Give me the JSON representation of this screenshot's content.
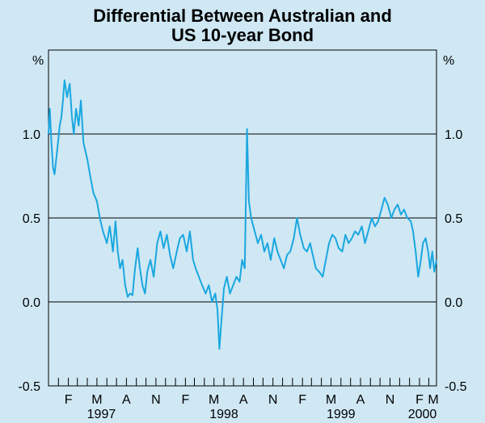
{
  "chart_data": {
    "type": "line",
    "title_lines": [
      "Differential Between Australian and",
      "US 10-year Bond"
    ],
    "y_unit_left": "%",
    "y_unit_right": "%",
    "ylim": [
      -0.5,
      1.5
    ],
    "y_ticks": [
      {
        "value": 1.0,
        "label": "1.0"
      },
      {
        "value": 0.5,
        "label": "0.5"
      },
      {
        "value": 0.0,
        "label": "0.0"
      },
      {
        "value": -0.5,
        "label": "-0.5"
      }
    ],
    "xlim": [
      "1996-12-01",
      "2000-03-25"
    ],
    "x_month_labels": [
      {
        "date": "1997-02-01",
        "label": "F"
      },
      {
        "date": "1997-05-01",
        "label": "M"
      },
      {
        "date": "1997-08-01",
        "label": "A"
      },
      {
        "date": "1997-11-01",
        "label": "N"
      },
      {
        "date": "1998-02-01",
        "label": "F"
      },
      {
        "date": "1998-05-01",
        "label": "M"
      },
      {
        "date": "1998-08-01",
        "label": "A"
      },
      {
        "date": "1998-11-01",
        "label": "N"
      },
      {
        "date": "1999-02-01",
        "label": "F"
      },
      {
        "date": "1999-05-01",
        "label": "M"
      },
      {
        "date": "1999-08-01",
        "label": "A"
      },
      {
        "date": "1999-11-01",
        "label": "N"
      },
      {
        "date": "2000-02-01",
        "label": "F"
      },
      {
        "date": "2000-03-15",
        "label": "M"
      }
    ],
    "x_year_labels": [
      {
        "date": "1997-05-15",
        "label": "1997"
      },
      {
        "date": "1998-06-01",
        "label": "1998"
      },
      {
        "date": "1999-06-01",
        "label": "1999"
      },
      {
        "date": "2000-02-10",
        "label": "2000"
      }
    ],
    "series": [
      {
        "color": "#1aa7e0",
        "points": [
          [
            "1996-12-01",
            1.0
          ],
          [
            "1996-12-05",
            1.15
          ],
          [
            "1996-12-10",
            0.95
          ],
          [
            "1996-12-15",
            0.8
          ],
          [
            "1996-12-20",
            0.76
          ],
          [
            "1996-12-28",
            0.9
          ],
          [
            "1997-01-05",
            1.05
          ],
          [
            "1997-01-10",
            1.1
          ],
          [
            "1997-01-15",
            1.2
          ],
          [
            "1997-01-20",
            1.32
          ],
          [
            "1997-01-28",
            1.22
          ],
          [
            "1997-02-05",
            1.3
          ],
          [
            "1997-02-12",
            1.1
          ],
          [
            "1997-02-18",
            1.0
          ],
          [
            "1997-02-25",
            1.15
          ],
          [
            "1997-03-05",
            1.05
          ],
          [
            "1997-03-12",
            1.2
          ],
          [
            "1997-03-20",
            0.95
          ],
          [
            "1997-04-01",
            0.85
          ],
          [
            "1997-04-10",
            0.75
          ],
          [
            "1997-04-20",
            0.65
          ],
          [
            "1997-05-01",
            0.6
          ],
          [
            "1997-05-10",
            0.5
          ],
          [
            "1997-05-20",
            0.42
          ],
          [
            "1997-06-01",
            0.35
          ],
          [
            "1997-06-10",
            0.45
          ],
          [
            "1997-06-20",
            0.3
          ],
          [
            "1997-06-28",
            0.48
          ],
          [
            "1997-07-05",
            0.3
          ],
          [
            "1997-07-12",
            0.2
          ],
          [
            "1997-07-20",
            0.25
          ],
          [
            "1997-07-28",
            0.1
          ],
          [
            "1997-08-05",
            0.03
          ],
          [
            "1997-08-12",
            0.05
          ],
          [
            "1997-08-20",
            0.04
          ],
          [
            "1997-08-28",
            0.2
          ],
          [
            "1997-09-05",
            0.32
          ],
          [
            "1997-09-12",
            0.2
          ],
          [
            "1997-09-20",
            0.1
          ],
          [
            "1997-09-28",
            0.05
          ],
          [
            "1997-10-05",
            0.18
          ],
          [
            "1997-10-15",
            0.25
          ],
          [
            "1997-10-25",
            0.15
          ],
          [
            "1997-11-05",
            0.35
          ],
          [
            "1997-11-15",
            0.42
          ],
          [
            "1997-11-25",
            0.32
          ],
          [
            "1997-12-05",
            0.4
          ],
          [
            "1997-12-15",
            0.28
          ],
          [
            "1997-12-25",
            0.2
          ],
          [
            "1998-01-05",
            0.3
          ],
          [
            "1998-01-15",
            0.38
          ],
          [
            "1998-01-25",
            0.4
          ],
          [
            "1998-02-05",
            0.3
          ],
          [
            "1998-02-15",
            0.42
          ],
          [
            "1998-02-25",
            0.25
          ],
          [
            "1998-03-05",
            0.2
          ],
          [
            "1998-03-15",
            0.15
          ],
          [
            "1998-03-25",
            0.1
          ],
          [
            "1998-04-05",
            0.05
          ],
          [
            "1998-04-15",
            0.1
          ],
          [
            "1998-04-25",
            0.0
          ],
          [
            "1998-05-05",
            0.05
          ],
          [
            "1998-05-12",
            -0.05
          ],
          [
            "1998-05-18",
            -0.28
          ],
          [
            "1998-05-24",
            -0.12
          ],
          [
            "1998-06-01",
            0.08
          ],
          [
            "1998-06-10",
            0.15
          ],
          [
            "1998-06-20",
            0.05
          ],
          [
            "1998-06-30",
            0.1
          ],
          [
            "1998-07-10",
            0.15
          ],
          [
            "1998-07-20",
            0.12
          ],
          [
            "1998-07-28",
            0.25
          ],
          [
            "1998-08-05",
            0.2
          ],
          [
            "1998-08-12",
            1.03
          ],
          [
            "1998-08-18",
            0.6
          ],
          [
            "1998-08-25",
            0.5
          ],
          [
            "1998-09-05",
            0.42
          ],
          [
            "1998-09-15",
            0.35
          ],
          [
            "1998-09-25",
            0.4
          ],
          [
            "1998-10-05",
            0.3
          ],
          [
            "1998-10-15",
            0.35
          ],
          [
            "1998-10-25",
            0.25
          ],
          [
            "1998-11-05",
            0.38
          ],
          [
            "1998-11-15",
            0.3
          ],
          [
            "1998-11-25",
            0.25
          ],
          [
            "1998-12-05",
            0.2
          ],
          [
            "1998-12-15",
            0.28
          ],
          [
            "1998-12-25",
            0.3
          ],
          [
            "1999-01-05",
            0.38
          ],
          [
            "1999-01-15",
            0.5
          ],
          [
            "1999-01-25",
            0.4
          ],
          [
            "1999-02-05",
            0.32
          ],
          [
            "1999-02-15",
            0.3
          ],
          [
            "1999-02-25",
            0.35
          ],
          [
            "1999-03-05",
            0.28
          ],
          [
            "1999-03-15",
            0.2
          ],
          [
            "1999-03-25",
            0.18
          ],
          [
            "1999-04-05",
            0.15
          ],
          [
            "1999-04-15",
            0.25
          ],
          [
            "1999-04-25",
            0.35
          ],
          [
            "1999-05-05",
            0.4
          ],
          [
            "1999-05-15",
            0.38
          ],
          [
            "1999-05-25",
            0.32
          ],
          [
            "1999-06-05",
            0.3
          ],
          [
            "1999-06-15",
            0.4
          ],
          [
            "1999-06-25",
            0.35
          ],
          [
            "1999-07-05",
            0.38
          ],
          [
            "1999-07-15",
            0.42
          ],
          [
            "1999-07-25",
            0.4
          ],
          [
            "1999-08-05",
            0.45
          ],
          [
            "1999-08-15",
            0.35
          ],
          [
            "1999-08-25",
            0.42
          ],
          [
            "1999-09-05",
            0.5
          ],
          [
            "1999-09-15",
            0.45
          ],
          [
            "1999-09-25",
            0.48
          ],
          [
            "1999-10-05",
            0.55
          ],
          [
            "1999-10-15",
            0.62
          ],
          [
            "1999-10-25",
            0.58
          ],
          [
            "1999-11-05",
            0.5
          ],
          [
            "1999-11-15",
            0.55
          ],
          [
            "1999-11-25",
            0.58
          ],
          [
            "1999-12-05",
            0.52
          ],
          [
            "1999-12-15",
            0.55
          ],
          [
            "1999-12-25",
            0.5
          ],
          [
            "2000-01-05",
            0.48
          ],
          [
            "2000-01-12",
            0.42
          ],
          [
            "2000-01-20",
            0.3
          ],
          [
            "2000-01-28",
            0.15
          ],
          [
            "2000-02-05",
            0.25
          ],
          [
            "2000-02-12",
            0.35
          ],
          [
            "2000-02-20",
            0.38
          ],
          [
            "2000-02-28",
            0.3
          ],
          [
            "2000-03-05",
            0.2
          ],
          [
            "2000-03-12",
            0.3
          ],
          [
            "2000-03-18",
            0.18
          ],
          [
            "2000-03-25",
            0.25
          ]
        ]
      }
    ]
  }
}
